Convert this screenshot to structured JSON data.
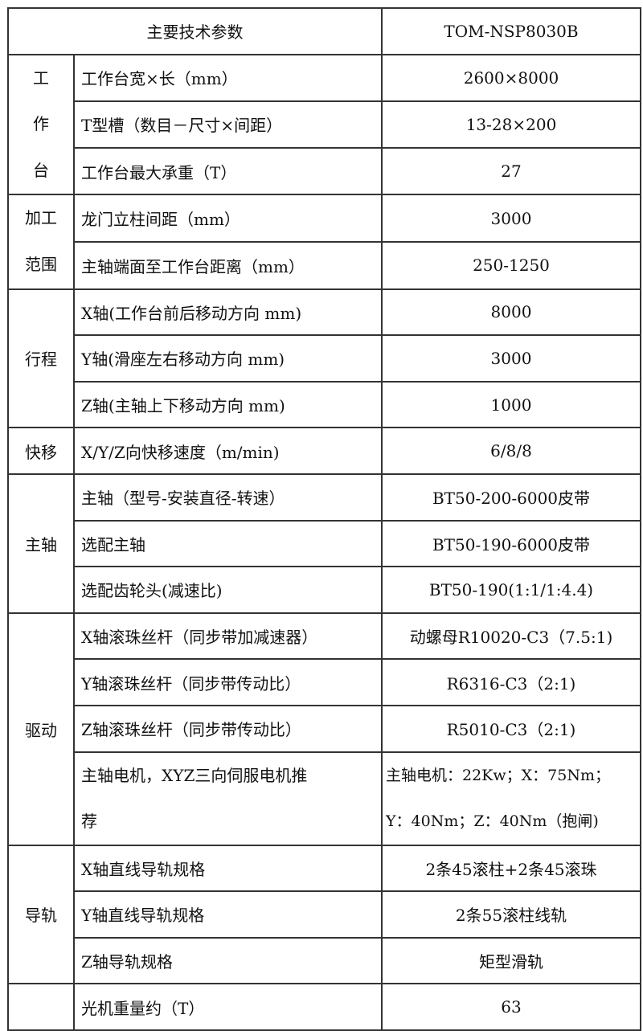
{
  "header": {
    "label": "主要技术参数",
    "model": "TOM-NSP8030B"
  },
  "groups": [
    {
      "name": "工作台",
      "chars": [
        "工",
        "作",
        "台"
      ],
      "rows": [
        {
          "param": "工作台宽×长（mm）",
          "value": "2600×8000"
        },
        {
          "param": "T型槽（数目－尺寸×间距）",
          "value": "13-28×200"
        },
        {
          "param": "工作台最大承重（T）",
          "value": "27"
        }
      ]
    },
    {
      "name": "加工范围",
      "chars": [
        "加工",
        "范围"
      ],
      "rows": [
        {
          "param": "龙门立柱间距（mm）",
          "value": "3000"
        },
        {
          "param": "主轴端面至工作台距离（mm）",
          "value": "250-1250"
        }
      ]
    },
    {
      "name": "行程",
      "rows": [
        {
          "param": "X轴(工作台前后移动方向 mm)",
          "value": "8000"
        },
        {
          "param": "Y轴(滑座左右移动方向 mm)",
          "value": "3000"
        },
        {
          "param": "Z轴(主轴上下移动方向 mm)",
          "value": "1000"
        }
      ]
    },
    {
      "name": "快移",
      "rows": [
        {
          "param": "X/Y/Z向快移速度（m/min)",
          "value": "6/8/8"
        }
      ]
    },
    {
      "name": "主轴",
      "rows": [
        {
          "param": "主轴（型号-安装直径-转速）",
          "value": "BT50-200-6000皮带"
        },
        {
          "param": "选配主轴",
          "value": "BT50-190-6000皮带"
        },
        {
          "param": "选配齿轮头(减速比)",
          "value": "BT50-190(1:1/1:4.4)"
        }
      ]
    },
    {
      "name": "驱动",
      "rows": [
        {
          "param": "X轴滚珠丝杆（同步带加减速器）",
          "value": "动螺母R10020-C3（7.5:1)"
        },
        {
          "param": "Y轴滚珠丝杆（同步带传动比）",
          "value": "R6316-C3（2:1)"
        },
        {
          "param": "Z轴滚珠丝杆（同步带传动比）",
          "value": "R5010-C3（2:1)"
        },
        {
          "param_line1": "主轴电机，XYZ三向伺服电机推",
          "param_line2": "荐",
          "value_line1": "主轴电机：22Kw；X：75Nm；",
          "value_line2": "Y：40Nm；Z：40Nm（抱闸)"
        }
      ]
    },
    {
      "name": "导轨",
      "rows": [
        {
          "param": "X轴直线导轨规格",
          "value": "2条45滚柱+2条45滚珠"
        },
        {
          "param": "Y轴直线导轨规格",
          "value": "2条55滚柱线轨"
        },
        {
          "param": "Z轴导轨规格",
          "value": "矩型滑轨"
        }
      ]
    },
    {
      "name": "",
      "rows": [
        {
          "param": "光机重量约（T）",
          "value": "63"
        }
      ]
    }
  ]
}
